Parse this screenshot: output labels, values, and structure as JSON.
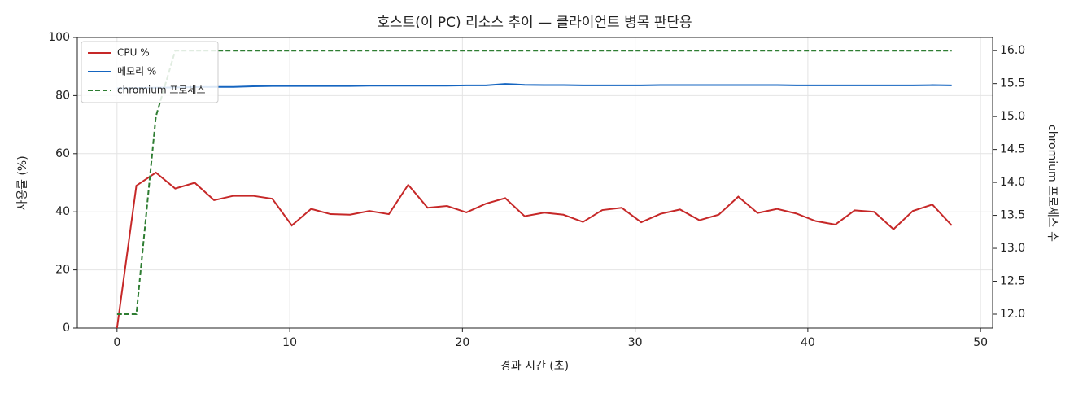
{
  "chart_data": {
    "type": "line",
    "title": "호스트(이 PC) 리소스 추이 — 클라이언트 병목 판단용",
    "xlabel": "경과 시간 (초)",
    "ylabel": "사용률 (%)",
    "y2label": "chromium 프로세스 수",
    "x": [
      0,
      1.12,
      2.25,
      3.37,
      4.5,
      5.62,
      6.74,
      7.87,
      8.99,
      10.12,
      11.24,
      12.36,
      13.49,
      14.61,
      15.74,
      16.86,
      17.98,
      19.11,
      20.23,
      21.36,
      22.48,
      23.6,
      24.73,
      25.85,
      26.98,
      28.1,
      29.22,
      30.35,
      31.47,
      32.6,
      33.72,
      34.84,
      35.97,
      37.09,
      38.22,
      39.34,
      40.46,
      41.59,
      42.71,
      43.84,
      44.96,
      46.08,
      47.21,
      48.33
    ],
    "series": [
      {
        "name": "CPU %",
        "color": "#c62828",
        "values": [
          0,
          49,
          53.5,
          48,
          50,
          44,
          45.5,
          45.5,
          44.5,
          35.3,
          41,
          39.2,
          39,
          40.3,
          39.2,
          49.3,
          41.4,
          42,
          39.8,
          42.8,
          44.7,
          38.5,
          39.7,
          39,
          36.5,
          40.6,
          41.4,
          36.4,
          39.3,
          40.8,
          37.1,
          39,
          45.2,
          39.6,
          41,
          39.4,
          36.8,
          35.6,
          40.5,
          40,
          34,
          40.3,
          42.5,
          35.3
        ]
      },
      {
        "name": "메모리 %",
        "color": "#1565c0",
        "values": [
          82.5,
          82.6,
          82.7,
          82.8,
          82.9,
          83,
          83,
          83.2,
          83.3,
          83.3,
          83.3,
          83.3,
          83.3,
          83.4,
          83.4,
          83.4,
          83.4,
          83.4,
          83.5,
          83.5,
          84,
          83.7,
          83.6,
          83.6,
          83.5,
          83.5,
          83.5,
          83.5,
          83.6,
          83.6,
          83.6,
          83.6,
          83.6,
          83.6,
          83.6,
          83.5,
          83.5,
          83.5,
          83.5,
          83.5,
          83.5,
          83.5,
          83.6,
          83.5
        ]
      },
      {
        "name": "chromium 프로세스",
        "color": "#2e7d32",
        "dashed": true,
        "axis": "y2",
        "values": [
          12,
          12,
          15,
          16,
          16,
          16,
          16,
          16,
          16,
          16,
          16,
          16,
          16,
          16,
          16,
          16,
          16,
          16,
          16,
          16,
          16,
          16,
          16,
          16,
          16,
          16,
          16,
          16,
          16,
          16,
          16,
          16,
          16,
          16,
          16,
          16,
          16,
          16,
          16,
          16,
          16,
          16,
          16,
          16
        ]
      }
    ],
    "xlim": [
      -2.3,
      50.7
    ],
    "xticks": [
      0,
      10,
      20,
      30,
      40,
      50
    ],
    "ylim": [
      0,
      100
    ],
    "yticks": [
      0,
      20,
      40,
      60,
      80,
      100
    ],
    "y2lim": [
      11.79,
      16.2
    ],
    "y2ticks": [
      {
        "value": 12,
        "label": "12.0"
      },
      12.5,
      {
        "value": 13,
        "label": "13.0"
      },
      13.5,
      {
        "value": 14,
        "label": "14.0"
      },
      14.5,
      {
        "value": 15,
        "label": "15.0"
      },
      15.5,
      {
        "value": 16,
        "label": "16.0"
      }
    ],
    "grid": true,
    "legend": "upper left"
  }
}
